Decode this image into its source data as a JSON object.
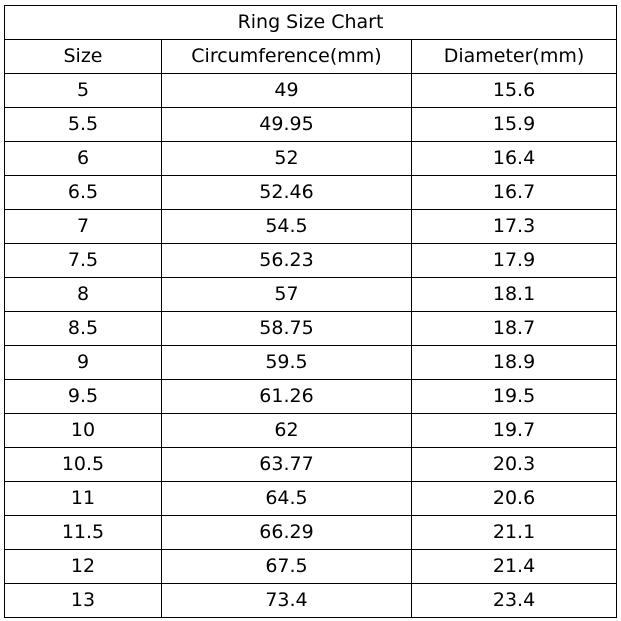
{
  "title": "Ring Size Chart",
  "headers": [
    "Size",
    "Circumference(mm)",
    "Diameter(mm)"
  ],
  "rows": [
    [
      "5",
      "49",
      "15.6"
    ],
    [
      "5.5",
      "49.95",
      "15.9"
    ],
    [
      "6",
      "52",
      "16.4"
    ],
    [
      "6.5",
      "52.46",
      "16.7"
    ],
    [
      "7",
      "54.5",
      "17.3"
    ],
    [
      "7.5",
      "56.23",
      "17.9"
    ],
    [
      "8",
      "57",
      "18.1"
    ],
    [
      "8.5",
      "58.75",
      "18.7"
    ],
    [
      "9",
      "59.5",
      "18.9"
    ],
    [
      "9.5",
      "61.26",
      "19.5"
    ],
    [
      "10",
      "62",
      "19.7"
    ],
    [
      "10.5",
      "63.77",
      "20.3"
    ],
    [
      "11",
      "64.5",
      "20.6"
    ],
    [
      "11.5",
      "66.29",
      "21.1"
    ],
    [
      "12",
      "67.5",
      "21.4"
    ],
    [
      "13",
      "73.4",
      "23.4"
    ]
  ]
}
